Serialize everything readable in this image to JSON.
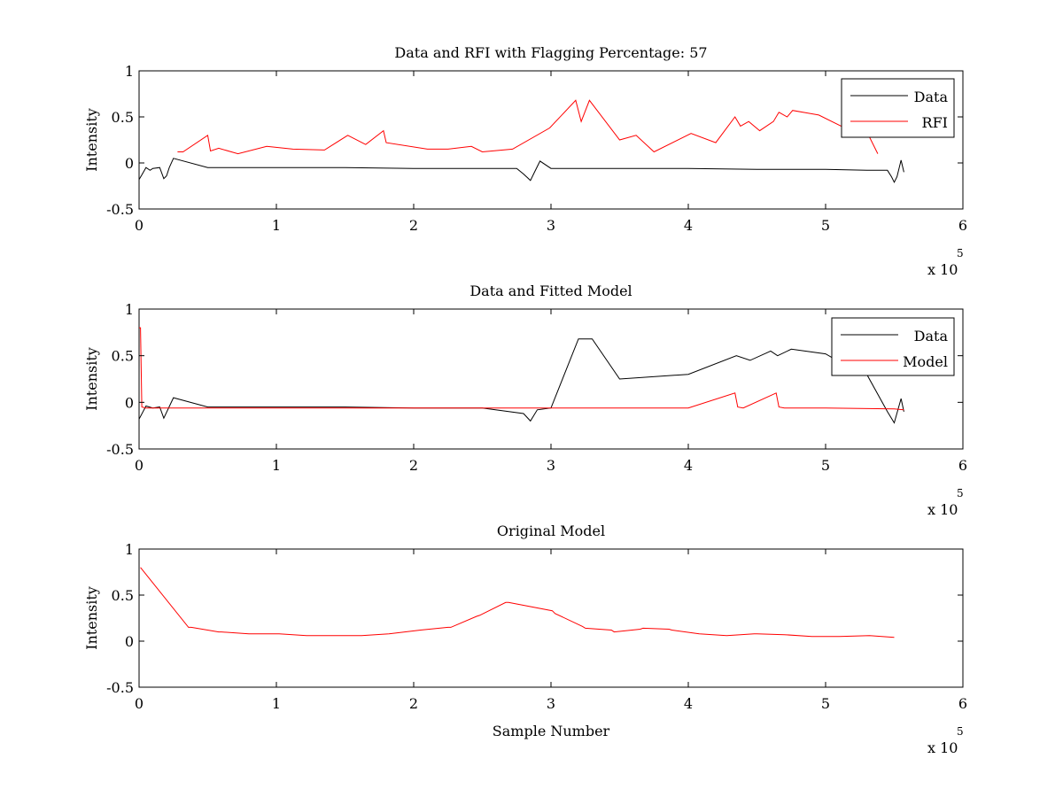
{
  "colors": {
    "data": "#000000",
    "red": "#ff0000",
    "background": "#ffffff"
  },
  "chart_data": [
    {
      "type": "line",
      "title": "Data and RFI with Flagging Percentage: 57",
      "xlabel": "",
      "ylabel": "Intensity",
      "xlim": [
        0,
        6
      ],
      "ylim": [
        -0.5,
        1
      ],
      "x_ticks": [
        "0",
        "1",
        "2",
        "3",
        "4",
        "5",
        "6"
      ],
      "y_ticks": [
        "-0.5",
        "0",
        "0.5",
        "1"
      ],
      "x_multiplier": {
        "base": "x 10",
        "exponent": "5"
      },
      "legend": "top-right",
      "series": [
        {
          "name": "Data",
          "color": "#000000",
          "x": [
            0.0,
            0.02,
            0.05,
            0.08,
            0.1,
            0.15,
            0.18,
            0.2,
            0.22,
            0.25,
            0.5,
            1.0,
            1.5,
            2.0,
            2.5,
            2.75,
            2.8,
            2.85,
            2.88,
            2.92,
            3.0,
            3.5,
            4.0,
            4.5,
            5.0,
            5.3,
            5.45,
            5.48,
            5.5,
            5.52,
            5.55,
            5.57
          ],
          "y": [
            -0.18,
            -0.13,
            -0.05,
            -0.08,
            -0.06,
            -0.05,
            -0.17,
            -0.14,
            -0.05,
            0.05,
            -0.05,
            -0.05,
            -0.05,
            -0.06,
            -0.06,
            -0.06,
            -0.12,
            -0.19,
            -0.1,
            0.02,
            -0.06,
            -0.06,
            -0.06,
            -0.07,
            -0.07,
            -0.08,
            -0.08,
            -0.15,
            -0.21,
            -0.15,
            0.03,
            -0.1
          ]
        },
        {
          "name": "RFI",
          "color": "#ff0000",
          "x": [
            0.28,
            0.32,
            0.5,
            0.52,
            0.58,
            0.72,
            0.93,
            1.12,
            1.35,
            1.52,
            1.65,
            1.78,
            1.8,
            2.1,
            2.25,
            2.42,
            2.5,
            2.72,
            2.99,
            3.18,
            3.22,
            3.28,
            3.5,
            3.62,
            3.75,
            4.02,
            4.2,
            4.34,
            4.38,
            4.44,
            4.52,
            4.62,
            4.66,
            4.72,
            4.76,
            4.95,
            5.18,
            5.22,
            5.28,
            5.38
          ],
          "y": [
            0.12,
            0.12,
            0.3,
            0.13,
            0.16,
            0.1,
            0.18,
            0.15,
            0.14,
            0.3,
            0.2,
            0.35,
            0.22,
            0.15,
            0.15,
            0.18,
            0.12,
            0.15,
            0.38,
            0.68,
            0.45,
            0.68,
            0.25,
            0.3,
            0.12,
            0.32,
            0.22,
            0.5,
            0.4,
            0.45,
            0.35,
            0.45,
            0.55,
            0.5,
            0.57,
            0.52,
            0.35,
            0.55,
            0.4,
            0.1
          ]
        }
      ]
    },
    {
      "type": "line",
      "title": "Data and Fitted Model",
      "xlabel": "",
      "ylabel": "Intensity",
      "xlim": [
        0,
        6
      ],
      "ylim": [
        -0.5,
        1
      ],
      "x_ticks": [
        "0",
        "1",
        "2",
        "3",
        "4",
        "5",
        "6"
      ],
      "y_ticks": [
        "-0.5",
        "0",
        "0.5",
        "1"
      ],
      "x_multiplier": {
        "base": "x 10",
        "exponent": "5"
      },
      "legend": "top-right",
      "series": [
        {
          "name": "Data",
          "color": "#000000",
          "x": [
            0.0,
            0.05,
            0.1,
            0.15,
            0.18,
            0.25,
            0.5,
            1.0,
            1.5,
            2.0,
            2.5,
            2.8,
            2.85,
            2.9,
            3.0,
            3.2,
            3.3,
            3.5,
            4.0,
            4.35,
            4.45,
            4.6,
            4.65,
            4.75,
            5.0,
            5.2,
            5.3,
            5.45,
            5.5,
            5.55,
            5.57
          ],
          "y": [
            -0.18,
            -0.04,
            -0.06,
            -0.05,
            -0.17,
            0.05,
            -0.05,
            -0.05,
            -0.05,
            -0.06,
            -0.06,
            -0.12,
            -0.2,
            -0.08,
            -0.06,
            0.68,
            0.68,
            0.25,
            0.3,
            0.5,
            0.45,
            0.55,
            0.5,
            0.57,
            0.52,
            0.35,
            0.3,
            -0.1,
            -0.22,
            0.04,
            -0.1
          ]
        },
        {
          "name": "Model",
          "color": "#ff0000",
          "x": [
            0.0,
            0.01,
            0.02,
            0.05,
            0.5,
            1.0,
            1.5,
            2.0,
            2.5,
            3.0,
            3.5,
            4.0,
            4.34,
            4.36,
            4.4,
            4.64,
            4.66,
            4.7,
            5.0,
            5.5,
            5.57
          ],
          "y": [
            0.8,
            0.8,
            -0.05,
            -0.06,
            -0.06,
            -0.06,
            -0.06,
            -0.06,
            -0.06,
            -0.06,
            -0.06,
            -0.06,
            0.1,
            -0.05,
            -0.06,
            0.1,
            -0.05,
            -0.06,
            -0.06,
            -0.07,
            -0.08
          ]
        }
      ]
    },
    {
      "type": "line",
      "title": "Original Model",
      "xlabel": "Sample Number",
      "ylabel": "Intensity",
      "xlim": [
        0,
        6
      ],
      "ylim": [
        -0.5,
        1
      ],
      "x_ticks": [
        "0",
        "1",
        "2",
        "3",
        "4",
        "5",
        "6"
      ],
      "y_ticks": [
        "-0.5",
        "0",
        "0.5",
        "1"
      ],
      "x_multiplier": {
        "base": "x 10",
        "exponent": "5"
      },
      "series": [
        {
          "color": "#ff0000",
          "x": [
            0.01,
            0.36,
            0.38,
            0.58,
            0.6,
            0.8,
            0.82,
            1.0,
            1.02,
            1.22,
            1.42,
            1.62,
            1.82,
            2.05,
            2.25,
            2.27,
            2.46,
            2.48,
            2.67,
            2.69,
            3.01,
            3.03,
            3.23,
            3.25,
            3.44,
            3.46,
            3.65,
            3.67,
            3.86,
            3.88,
            4.08,
            4.28,
            4.48,
            4.5,
            4.7,
            4.9,
            5.1,
            5.32,
            5.5
          ],
          "y": [
            0.8,
            0.15,
            0.15,
            0.1,
            0.1,
            0.08,
            0.08,
            0.08,
            0.08,
            0.06,
            0.06,
            0.06,
            0.08,
            0.12,
            0.15,
            0.15,
            0.27,
            0.28,
            0.42,
            0.42,
            0.33,
            0.3,
            0.16,
            0.14,
            0.12,
            0.1,
            0.13,
            0.14,
            0.13,
            0.12,
            0.08,
            0.06,
            0.08,
            0.08,
            0.07,
            0.05,
            0.05,
            0.06,
            0.04
          ]
        }
      ]
    }
  ]
}
